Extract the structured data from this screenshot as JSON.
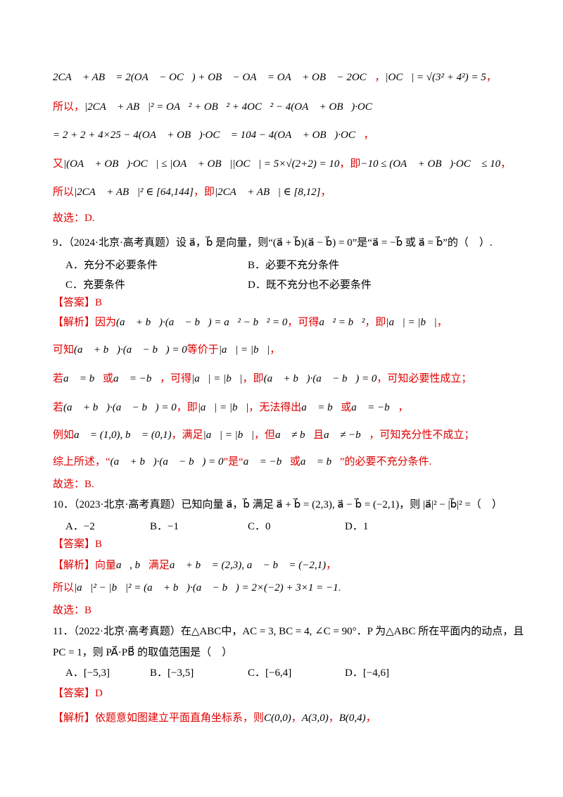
{
  "prev": [
    [
      "2CA⃗ + AB⃗ = 2(OA⃗ − OC⃗) + OB⃗ − OA⃗ = OA⃗ + OB⃗ − 2OC⃗",
      "，",
      "|OC⃗| = √(3² + 4²) = 5",
      "，"
    ],
    [
      "所以，",
      "|2CA⃗ + AB⃗|² = OA⃗² + OB⃗² + 4OC⃗² − 4(OA⃗ + OB⃗)·OC⃗"
    ],
    [
      "= 2 + 2 + 4×25 − 4(OA⃗ + OB⃗)·OC⃗ = 104 − 4(OA⃗ + OB⃗)·OC⃗",
      "，"
    ],
    [
      "又",
      "|(OA⃗ + OB⃗)·OC⃗| ≤ |OA⃗ + OB⃗||OC⃗| = 5×√(2+2) = 10",
      "，即",
      "−10 ≤ (OA⃗ + OB⃗)·OC⃗ ≤ 10",
      "，"
    ],
    [
      "所以",
      "|2CA⃗ + AB⃗|² ∈ [64,144]",
      "，即",
      "|2CA⃗ + AB⃗| ∈ [8,12]",
      "，"
    ],
    [
      "故选：D."
    ]
  ],
  "q9": {
    "stem": "9．（2024·北京·高考真题）设 a⃗，b⃗ 是向量，则“(a⃗ + b⃗)(a⃗ − b⃗) = 0”是“a⃗ = −b⃗ 或 a⃗ = b⃗”的（　）.",
    "options": [
      "A．充分不必要条件",
      "B．必要不充分条件",
      "C．充要条件",
      "D．既不充分也不必要条件"
    ],
    "answer": "【答案】B",
    "analysis": [
      [
        "【解析】因为",
        "(a⃗ + b⃗)·(a⃗ − b⃗) = a⃗² − b⃗² = 0",
        "，可得",
        "a⃗² = b⃗²",
        "，即",
        "|a⃗| = |b⃗|",
        "，"
      ],
      [
        "可知",
        "(a⃗ + b⃗)·(a⃗ − b⃗) = 0",
        "等价于",
        "|a⃗| = |b⃗|",
        "，"
      ],
      [
        "若",
        "a⃗ = b⃗",
        "或",
        "a⃗ = −b⃗",
        "，可得",
        "|a⃗| = |b⃗|",
        "，即",
        "(a⃗ + b⃗)·(a⃗ − b⃗) = 0",
        "，可知必要性成立；"
      ],
      [
        "若",
        "(a⃗ + b⃗)·(a⃗ − b⃗) = 0",
        "，即",
        "|a⃗| = |b⃗|",
        "，无法得出",
        "a⃗ = b⃗",
        "或",
        "a⃗ = −b⃗",
        "，"
      ],
      [
        "例如",
        "a⃗ = (1,0), b⃗ = (0,1)",
        "，满足",
        "|a⃗| = |b⃗|",
        "，但",
        "a⃗ ≠ b⃗",
        "且",
        "a⃗ ≠ −b⃗",
        "，可知充分性不成立；"
      ],
      [
        "综上所述，“",
        "(a⃗ + b⃗)·(a⃗ − b⃗) = 0",
        "”是“",
        "a⃗ = −b⃗",
        "或",
        "a⃗ = b⃗",
        "”的必要不充分条件."
      ],
      [
        "故选：B."
      ]
    ]
  },
  "q10": {
    "stem": "10．（2023·北京·高考真题）已知向量 a⃗，b⃗ 满足 a⃗ + b⃗ = (2,3), a⃗ − b⃗ = (−2,1)，则 |a⃗|² − |b⃗|² =（　）",
    "options": [
      "A．−2",
      "B．−1",
      "C．0",
      "D．1"
    ],
    "answer": "【答案】B",
    "analysis": [
      [
        "【解析】向量",
        "a⃗, b⃗",
        "满足",
        "a⃗ + b⃗ = (2,3), a⃗ − b⃗ = (−2,1)",
        "，"
      ],
      [
        "所以",
        "|a⃗|² − |b⃗|² = (a⃗ + b⃗)·(a⃗ − b⃗) = 2×(−2) + 3×1 = −1",
        "."
      ],
      [
        "故选：B"
      ]
    ]
  },
  "q11": {
    "stem": [
      "11．（2022·北京·高考真题）在△ABC中，AC = 3, BC = 4, ∠C = 90°．P 为△ABC 所在平面内的动点，且",
      "PC = 1，则 PA⃗·PB⃗ 的取值范围是（　）"
    ],
    "options": [
      "A．[−5,3]",
      "B．[−3,5]",
      "C．[−6,4]",
      "D．[−4,6]"
    ],
    "answer": "【答案】D",
    "analysis": [
      [
        "【解析】依题意如图建立平面直角坐标系，则",
        "C(0,0)",
        "，",
        "A(3,0)",
        "，",
        "B(0,4)",
        "，"
      ]
    ]
  }
}
